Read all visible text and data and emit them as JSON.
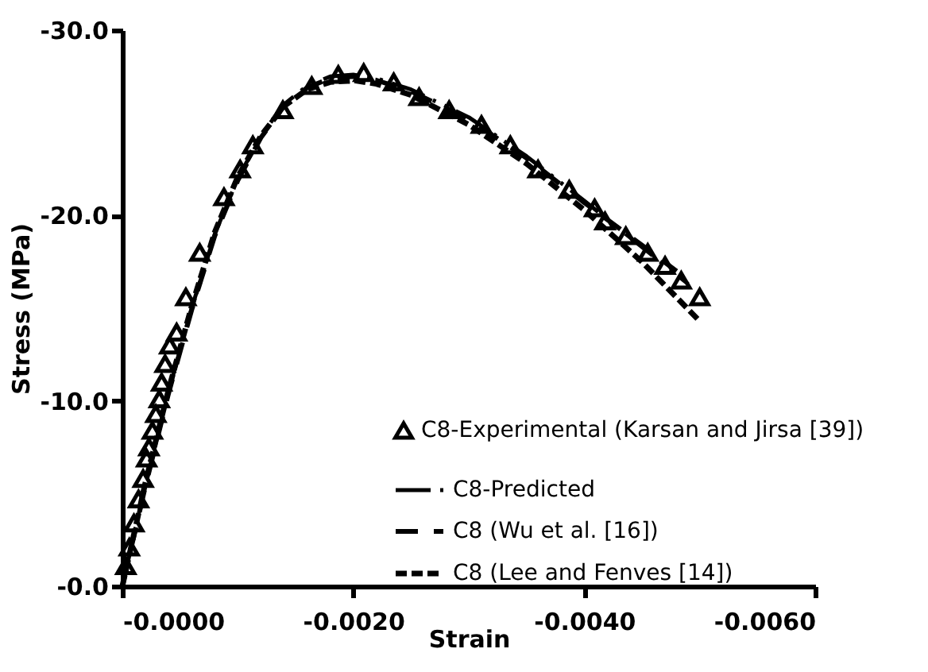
{
  "chart_data": {
    "type": "scatter",
    "xlabel": "Strain",
    "ylabel": "Stress (MPa)",
    "xlim": [
      0,
      -0.006
    ],
    "ylim": [
      0,
      -30
    ],
    "xticks": [
      {
        "value": 0,
        "label": "-0.0000"
      },
      {
        "value": -0.002,
        "label": "-0.0020"
      },
      {
        "value": -0.004,
        "label": "-0.0040"
      },
      {
        "value": -0.006,
        "label": "-0.0060"
      }
    ],
    "yticks": [
      {
        "value": 0,
        "label": "-0.0"
      },
      {
        "value": -10,
        "label": "-10.0"
      },
      {
        "value": -20,
        "label": "-20.0"
      },
      {
        "value": -30,
        "label": "-30.0"
      }
    ],
    "grid": false,
    "legend": "bottom right",
    "series": [
      {
        "name": "C8-Experimental (Karsan and Jirsa [39])",
        "marker": "triangle",
        "color": "#000000",
        "x": [
          -3e-05,
          -6e-05,
          -0.0001,
          -0.00014,
          -0.00018,
          -0.00021,
          -0.00023,
          -0.00026,
          -0.00029,
          -0.00032,
          -0.00034,
          -0.00037,
          -0.00041,
          -0.00047,
          -0.00055,
          -0.00067,
          -0.00088,
          -0.00102,
          -0.00113,
          -0.00139,
          -0.00164,
          -0.00187,
          -0.00209,
          -0.00235,
          -0.00257,
          -0.00283,
          -0.00311,
          -0.00336,
          -0.0036,
          -0.00387,
          -0.00409,
          -0.00418,
          -0.00436,
          -0.00455,
          -0.0047,
          -0.00484,
          -0.005
        ],
        "values": [
          -1.1,
          -2.1,
          -3.4,
          -4.7,
          -5.8,
          -6.9,
          -7.5,
          -8.4,
          -9.3,
          -10.1,
          -11.0,
          -12.0,
          -13.0,
          -13.7,
          -15.6,
          -18.0,
          -21.0,
          -22.5,
          -23.8,
          -25.7,
          -27.0,
          -27.6,
          -27.7,
          -27.2,
          -26.4,
          -25.7,
          -24.9,
          -23.8,
          -22.5,
          -21.4,
          -20.4,
          -19.7,
          -18.9,
          -18.0,
          -17.3,
          -16.5,
          -15.6
        ]
      },
      {
        "name": "C8-Predicted",
        "type": "line",
        "line_style": "dashdot",
        "color": "#000000",
        "x": [
          0,
          -0.0002,
          -0.0004,
          -0.0006,
          -0.0008,
          -0.001,
          -0.0012,
          -0.0014,
          -0.0016,
          -0.0018,
          -0.002,
          -0.0022,
          -0.0025,
          -0.003,
          -0.0035,
          -0.004,
          -0.0045,
          -0.0049
        ],
        "values": [
          0,
          -5.5,
          -10.5,
          -15,
          -19,
          -22,
          -24.3,
          -26,
          -27,
          -27.5,
          -27.6,
          -27.4,
          -26.8,
          -25.3,
          -23.2,
          -20.8,
          -18.3,
          -16.3
        ]
      },
      {
        "name": "C8 (Wu et al. [16])",
        "type": "line",
        "line_style": "double",
        "color": "#000000",
        "x": [
          0,
          -0.0002,
          -0.0004,
          -0.0006,
          -0.0008,
          -0.001,
          -0.0012,
          -0.0014,
          -0.0016,
          -0.0018,
          -0.002,
          -0.0022,
          -0.0025,
          -0.003,
          -0.0035,
          -0.004,
          -0.0045,
          -0.0048
        ],
        "values": [
          0,
          -5.4,
          -10.4,
          -14.9,
          -18.9,
          -21.9,
          -24.2,
          -25.9,
          -26.9,
          -27.4,
          -27.5,
          -27.3,
          -26.7,
          -25.2,
          -23.1,
          -20.7,
          -18.4,
          -17.0
        ]
      },
      {
        "name": "C8 (Lee and Fenves [14])",
        "type": "line",
        "line_style": "dashed",
        "color": "#000000",
        "x": [
          0,
          -0.0002,
          -0.0004,
          -0.0006,
          -0.0008,
          -0.001,
          -0.0012,
          -0.0014,
          -0.0016,
          -0.0018,
          -0.002,
          -0.0022,
          -0.0025,
          -0.003,
          -0.0035,
          -0.004,
          -0.0045,
          -0.005
        ],
        "values": [
          0,
          -5.6,
          -10.6,
          -15.1,
          -19.1,
          -22.1,
          -24.3,
          -25.9,
          -26.8,
          -27.2,
          -27.3,
          -27.1,
          -26.5,
          -24.9,
          -22.8,
          -20.3,
          -17.5,
          -14.3
        ]
      }
    ]
  }
}
